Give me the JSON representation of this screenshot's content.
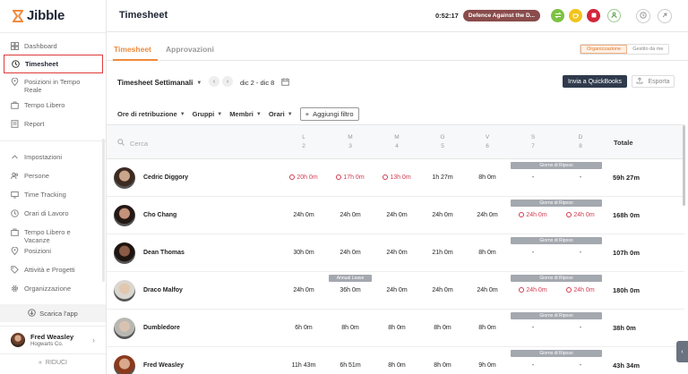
{
  "app": {
    "logo_text": "Jibble"
  },
  "sidebar": {
    "items": [
      {
        "label": "Dashboard",
        "icon": "dashboard-icon"
      },
      {
        "label": "Timesheet",
        "icon": "clock-icon",
        "active": true
      },
      {
        "label": "Posizioni in Tempo Reale",
        "icon": "location-pin-icon"
      },
      {
        "label": "Tempo Libero",
        "icon": "suitcase-icon"
      },
      {
        "label": "Report",
        "icon": "report-icon"
      }
    ],
    "settings_items": [
      {
        "label": "Impostazioni",
        "icon": "chevron-up-icon"
      },
      {
        "label": "Persone",
        "icon": "people-icon"
      },
      {
        "label": "Time Tracking",
        "icon": "time-tracking-icon"
      },
      {
        "label": "Orari di Lavoro",
        "icon": "clock-icon"
      },
      {
        "label": "Tempo Libero e Vacanze",
        "icon": "suitcase-icon"
      },
      {
        "label": "Posizioni",
        "icon": "location-pin-icon"
      },
      {
        "label": "Attività e Progetti",
        "icon": "tag-icon"
      },
      {
        "label": "Organizzazione",
        "icon": "gear-icon"
      }
    ],
    "download_label": "Scarica l'app",
    "user": {
      "name": "Fred Weasley",
      "org": "Hogwarts Co."
    },
    "collapse_label": "RIDUCI"
  },
  "header": {
    "title": "Timesheet",
    "timer": "0:52:17",
    "activity": "Defence Against the D...",
    "colors": {
      "activity": "#8a4b4b",
      "green": "#7cc242",
      "yellow": "#f2c318",
      "red": "#d3263a"
    }
  },
  "tabs": {
    "items": [
      "Timesheet",
      "Approvazioni"
    ],
    "active": "Timesheet",
    "segments": [
      "Organizzazione",
      "Gestito da me"
    ],
    "segment_active": "Organizzazione"
  },
  "toolbar": {
    "view": "Timesheet Settimanali",
    "range": "dic 2 - dic 8",
    "quickbooks": "Invia a QuickBooks",
    "export": "Esporta"
  },
  "filters": {
    "items": [
      "Ore di retribuzione",
      "Gruppi",
      "Membri",
      "Orari"
    ],
    "add": "Aggiungi filtro"
  },
  "table": {
    "search_placeholder": "Cerca",
    "days": [
      {
        "letter": "L",
        "num": "2"
      },
      {
        "letter": "M",
        "num": "3"
      },
      {
        "letter": "M",
        "num": "4"
      },
      {
        "letter": "G",
        "num": "5"
      },
      {
        "letter": "V",
        "num": "6"
      },
      {
        "letter": "S",
        "num": "7"
      },
      {
        "letter": "D",
        "num": "8"
      }
    ],
    "total_header": "Totale",
    "rest_day_label": "Giorno di Riposo",
    "annual_leave_label": "Annual Leave",
    "rows": [
      {
        "name": "Cedric Diggory",
        "cells": [
          "20h 0m",
          "17h 0m",
          "13h 0m",
          "1h 27m",
          "8h 0m",
          "-",
          "-"
        ],
        "red": [
          true,
          true,
          true,
          false,
          false,
          false,
          false
        ],
        "total": "59h 27m"
      },
      {
        "name": "Cho Chang",
        "cells": [
          "24h 0m",
          "24h 0m",
          "24h 0m",
          "24h 0m",
          "24h 0m",
          "24h 0m",
          "24h 0m"
        ],
        "red": [
          false,
          false,
          false,
          false,
          false,
          true,
          true
        ],
        "total": "168h 0m"
      },
      {
        "name": "Dean Thomas",
        "cells": [
          "30h 0m",
          "24h 0m",
          "24h 0m",
          "21h 0m",
          "8h 0m",
          "-",
          "-"
        ],
        "red": [
          false,
          false,
          false,
          false,
          false,
          false,
          false
        ],
        "total": "107h 0m"
      },
      {
        "name": "Draco Malfoy",
        "cells": [
          "24h 0m",
          "36h 0m",
          "24h 0m",
          "24h 0m",
          "24h 0m",
          "24h 0m",
          "24h 0m"
        ],
        "red": [
          false,
          false,
          false,
          false,
          false,
          true,
          true
        ],
        "total": "180h 0m"
      },
      {
        "name": "Dumbledore",
        "cells": [
          "6h 0m",
          "8h 0m",
          "8h 0m",
          "8h 0m",
          "8h 0m",
          "-",
          "-"
        ],
        "red": [
          false,
          false,
          false,
          false,
          false,
          false,
          false
        ],
        "total": "38h 0m"
      },
      {
        "name": "Fred Weasley",
        "cells": [
          "11h 43m",
          "6h 51m",
          "8h 0m",
          "8h 0m",
          "9h 0m",
          "-",
          "-"
        ],
        "red": [
          false,
          false,
          false,
          false,
          false,
          false,
          false
        ],
        "total": "43h 34m"
      }
    ]
  }
}
